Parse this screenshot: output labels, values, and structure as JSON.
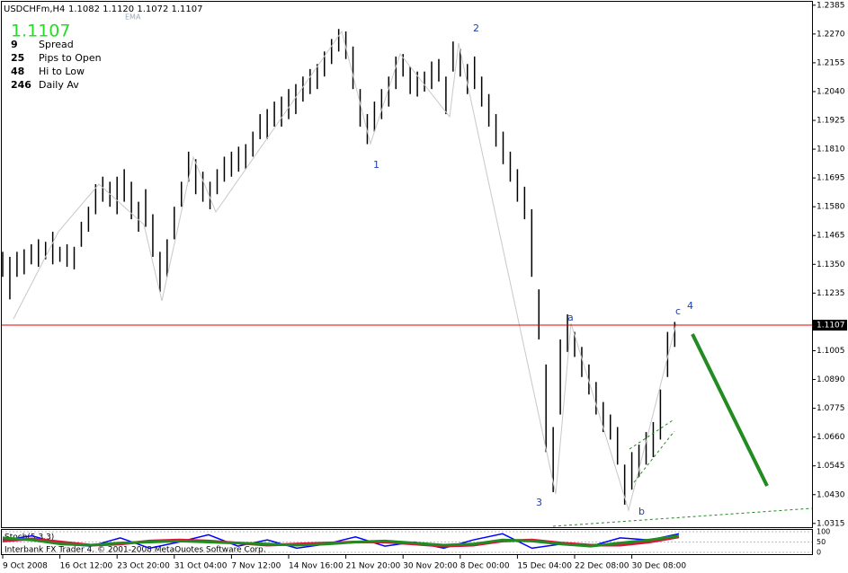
{
  "chart_data": {
    "type": "ohlc",
    "title": "USDCHFm,H4",
    "quote_text": "1.1082 1.1120 1.1072 1.1107",
    "indicator": "EMA",
    "big_price": "1.1107",
    "info_rows": [
      {
        "value": 9,
        "label": "Spread",
        "color": "#e6c800"
      },
      {
        "value": 25,
        "label": "Pips to Open",
        "color": "#22c022"
      },
      {
        "value": 48,
        "label": "Hi to Low",
        "color": "#f0a000"
      },
      {
        "value": 246,
        "label": "Daily Av",
        "color": "#e05020"
      }
    ],
    "current_price": {
      "value": 1.1107,
      "label": "1.1107"
    },
    "color": "#000000",
    "current_color": "#e00000",
    "categories": [
      "9 Oct 2008",
      null,
      null,
      null,
      null,
      null,
      null,
      null,
      "16 Oct 12:00",
      null,
      null,
      null,
      null,
      null,
      null,
      null,
      "23 Oct 20:00",
      null,
      null,
      null,
      null,
      null,
      null,
      null,
      "31 Oct 04:00",
      null,
      null,
      null,
      null,
      null,
      null,
      null,
      "7 Nov 12:00",
      null,
      null,
      null,
      null,
      null,
      null,
      null,
      "14 Nov 16:00",
      null,
      null,
      null,
      null,
      null,
      null,
      null,
      "21 Nov 20:00",
      null,
      null,
      null,
      null,
      null,
      null,
      null,
      "30 Nov 20:00",
      null,
      null,
      null,
      null,
      null,
      null,
      null,
      "8 Dec 00:00",
      null,
      null,
      null,
      null,
      null,
      null,
      null,
      "15 Dec 04:00",
      null,
      null,
      null,
      null,
      null,
      null,
      null,
      "22 Dec 08:00",
      null,
      null,
      null,
      null,
      null,
      null,
      null,
      "30 Dec 08:00",
      null,
      null,
      null,
      null,
      null,
      null
    ],
    "highs": [
      1.14,
      1.138,
      1.14,
      1.141,
      1.143,
      1.145,
      1.144,
      1.148,
      1.142,
      1.143,
      1.142,
      1.152,
      1.158,
      1.167,
      1.17,
      1.168,
      1.17,
      1.173,
      1.168,
      1.16,
      1.165,
      1.155,
      1.14,
      1.145,
      1.158,
      1.168,
      1.18,
      1.177,
      1.172,
      1.168,
      1.173,
      1.178,
      1.18,
      1.182,
      1.183,
      1.188,
      1.195,
      1.197,
      1.2,
      1.202,
      1.205,
      1.207,
      1.21,
      1.213,
      1.215,
      1.22,
      1.225,
      1.229,
      1.228,
      1.222,
      1.205,
      1.195,
      1.2,
      1.205,
      1.21,
      1.218,
      1.219,
      1.214,
      1.212,
      1.212,
      1.216,
      1.217,
      1.21,
      1.224,
      1.221,
      1.215,
      1.218,
      1.21,
      1.203,
      1.195,
      1.188,
      1.18,
      1.173,
      1.166,
      1.157,
      1.125,
      1.095,
      1.07,
      1.105,
      1.115,
      1.108,
      1.102,
      1.095,
      1.088,
      1.08,
      1.075,
      1.07,
      1.055,
      1.06,
      1.063,
      1.068,
      1.072,
      1.085,
      1.108,
      1.112
    ],
    "lows": [
      1.13,
      1.121,
      1.13,
      1.131,
      1.135,
      1.134,
      1.137,
      1.135,
      1.136,
      1.134,
      1.133,
      1.142,
      1.148,
      1.155,
      1.16,
      1.158,
      1.155,
      1.16,
      1.153,
      1.148,
      1.15,
      1.138,
      1.124,
      1.13,
      1.145,
      1.158,
      1.168,
      1.163,
      1.16,
      1.157,
      1.163,
      1.168,
      1.17,
      1.172,
      1.173,
      1.178,
      1.185,
      1.185,
      1.19,
      1.19,
      1.193,
      1.195,
      1.2,
      1.203,
      1.205,
      1.21,
      1.215,
      1.22,
      1.217,
      1.205,
      1.19,
      1.183,
      1.188,
      1.193,
      1.198,
      1.205,
      1.21,
      1.203,
      1.202,
      1.204,
      1.205,
      1.208,
      1.195,
      1.212,
      1.21,
      1.203,
      1.205,
      1.198,
      1.19,
      1.182,
      1.175,
      1.168,
      1.16,
      1.153,
      1.13,
      1.105,
      1.06,
      1.044,
      1.075,
      1.1,
      1.098,
      1.09,
      1.083,
      1.075,
      1.068,
      1.065,
      1.055,
      1.039,
      1.045,
      1.05,
      1.055,
      1.058,
      1.065,
      1.09,
      1.102
    ],
    "ylim": [
      1.03,
      1.2395
    ],
    "yticks": [
      1.2385,
      {
        "value": 1.227,
        "label": "1.2270"
      },
      1.2155,
      {
        "value": 1.204,
        "label": "1.2040"
      },
      1.1925,
      {
        "value": 1.181,
        "label": "1.1810"
      },
      1.1695,
      {
        "value": 1.158,
        "label": "1.1580"
      },
      1.1465,
      {
        "value": 1.135,
        "label": "1.1350"
      },
      1.1235,
      1.1005,
      {
        "value": 1.089,
        "label": "1.0890"
      },
      1.0775,
      {
        "value": 1.066,
        "label": "1.0660"
      },
      1.0545,
      {
        "value": 1.043,
        "label": "1.0430"
      },
      1.0315
    ],
    "wave_labels": [
      "1",
      "2",
      "3",
      "4",
      "a",
      "b",
      "c"
    ],
    "oscillator": {
      "label": "Stoch(5,3,3)",
      "ylim": [
        0,
        100
      ],
      "yticks": [
        0,
        50,
        100
      ],
      "series": [
        {
          "color": "#0000ff",
          "values": [
            60,
            80,
            40,
            30,
            70,
            20,
            50,
            85,
            30,
            60,
            20,
            40,
            75,
            30,
            50,
            20,
            60,
            90,
            20,
            40,
            30,
            70,
            60,
            90
          ]
        },
        {
          "color": "#dc143c",
          "values": [
            55,
            65,
            50,
            35,
            40,
            55,
            60,
            55,
            45,
            35,
            40,
            45,
            50,
            50,
            40,
            30,
            35,
            55,
            60,
            45,
            35,
            35,
            50,
            75
          ]
        },
        {
          "color": "#228b22",
          "values": [
            70,
            60,
            40,
            35,
            45,
            50,
            55,
            50,
            45,
            40,
            35,
            40,
            50,
            55,
            45,
            35,
            40,
            60,
            55,
            40,
            30,
            45,
            60,
            80
          ]
        }
      ]
    },
    "footer": "Interbank FX Trader 4, © 2001-2008 MetaQuotes Software Corp."
  }
}
